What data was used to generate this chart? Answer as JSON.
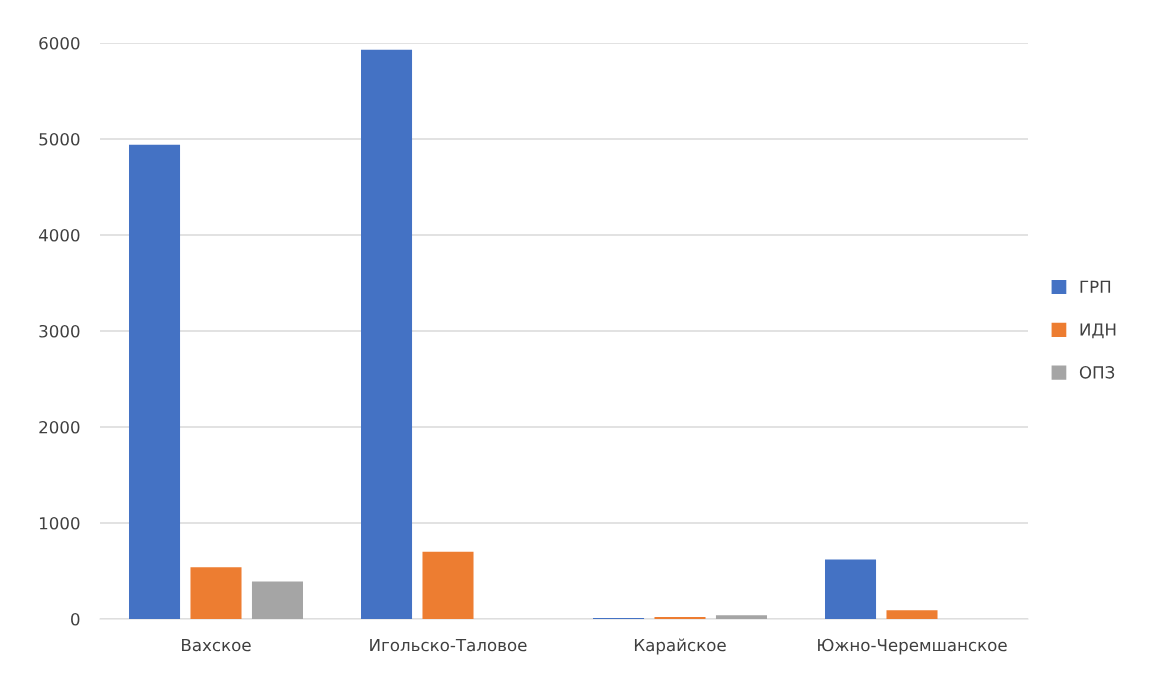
{
  "chart_data": {
    "type": "bar",
    "categories": [
      "Вахское",
      "Игольско-Таловое",
      "Карайское",
      "Южно-Черемшанское"
    ],
    "series": [
      {
        "name": "ГРП",
        "color": "#4472c4",
        "values": [
          4940,
          5930,
          10,
          620
        ]
      },
      {
        "name": "ИДН",
        "color": "#ed7d31",
        "values": [
          540,
          700,
          20,
          90
        ]
      },
      {
        "name": "ОПЗ",
        "color": "#a5a5a5",
        "values": [
          390,
          0,
          40,
          0
        ]
      }
    ],
    "ylim": [
      0,
      6000
    ],
    "yticks": [
      0,
      1000,
      2000,
      3000,
      4000,
      5000,
      6000
    ],
    "grid": "y",
    "legend": "right"
  }
}
